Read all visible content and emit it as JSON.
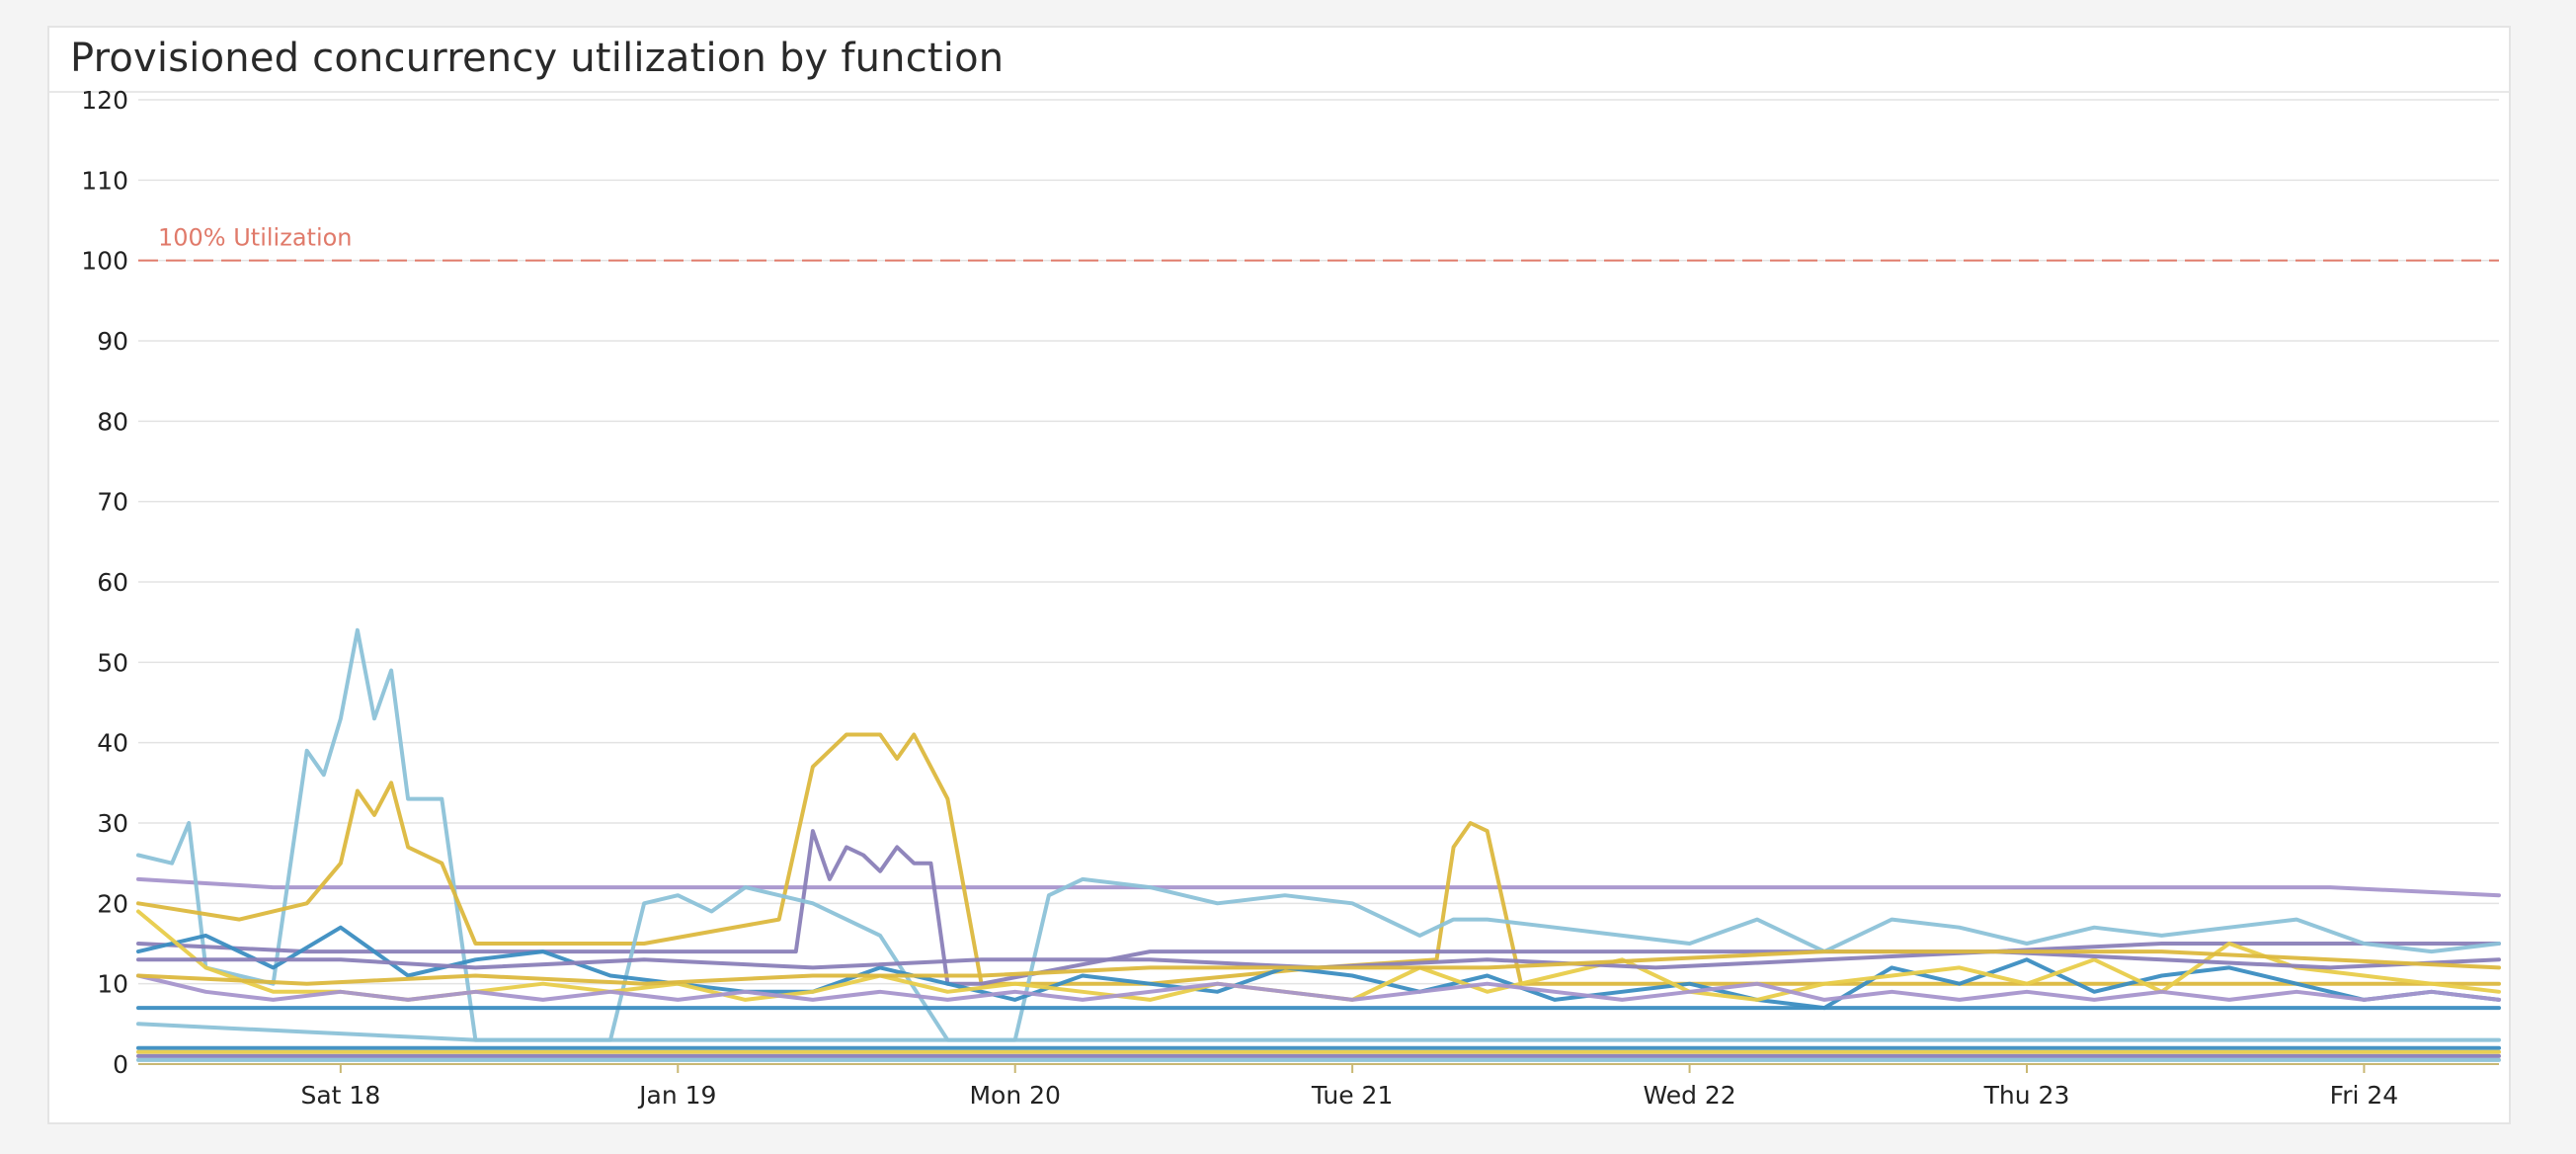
{
  "widget": {
    "title": "Provisioned concurrency utilization by function"
  },
  "chart_data": {
    "type": "line",
    "title": "Provisioned concurrency utilization by function",
    "xlabel": "",
    "ylabel": "",
    "ylim": [
      0,
      120
    ],
    "yticks": [
      0,
      10,
      20,
      30,
      40,
      50,
      60,
      70,
      80,
      90,
      100,
      110,
      120
    ],
    "xlim": [
      0,
      7
    ],
    "xticks": [
      {
        "x": 0.6,
        "label": "Sat 18"
      },
      {
        "x": 1.6,
        "label": "Jan 19"
      },
      {
        "x": 2.6,
        "label": "Mon 20"
      },
      {
        "x": 3.6,
        "label": "Tue 21"
      },
      {
        "x": 4.6,
        "label": "Wed 22"
      },
      {
        "x": 5.6,
        "label": "Thu 23"
      },
      {
        "x": 6.6,
        "label": "Fri 24"
      }
    ],
    "grid": true,
    "legend": "none",
    "marker": {
      "value": 100,
      "label": "100% Utilization",
      "color": "#e07a6a"
    },
    "colors": {
      "purple": "#8a7fb8",
      "lightpurple": "#a795cc",
      "lightblue": "#8cc2d8",
      "blue": "#3b8dc1",
      "yellow": "#e8cc4a",
      "gold": "#dcb83e",
      "grid": "#e3e3e3",
      "axis": "#c9b873",
      "text": "#222222"
    },
    "series": [
      {
        "color": "lightpurple",
        "x": [
          0,
          0.2,
          0.4,
          0.6,
          0.8,
          1,
          1.5,
          2,
          2.5,
          3,
          3.5,
          4,
          4.5,
          5,
          5.5,
          6,
          6.5,
          7
        ],
        "values": [
          23,
          22.5,
          22,
          22,
          22,
          22,
          22,
          22,
          22,
          22,
          22,
          22,
          22,
          22,
          22,
          22,
          22,
          21
        ]
      },
      {
        "color": "lightblue",
        "x": [
          0,
          0.1,
          0.15,
          0.2,
          0.4,
          0.5,
          0.55,
          0.6,
          0.65,
          0.7,
          0.75,
          0.8,
          0.9,
          1,
          1.5,
          2,
          2.5,
          3,
          3.5,
          4,
          4.5,
          5,
          5.5,
          6,
          6.5,
          7
        ],
        "values": [
          26,
          25,
          30,
          12,
          10,
          39,
          36,
          43,
          54,
          43,
          49,
          33,
          33,
          3,
          3,
          3,
          3,
          3,
          3,
          3,
          3,
          3,
          3,
          3,
          3,
          3
        ]
      },
      {
        "color": "gold",
        "x": [
          0,
          0.3,
          0.5,
          0.6,
          0.65,
          0.7,
          0.75,
          0.8,
          0.9,
          1,
          1.5,
          1.9,
          2,
          2.1,
          2.2,
          2.25,
          2.3,
          2.4,
          2.5,
          2.6,
          3,
          3.5,
          3.85,
          3.9,
          3.95,
          4,
          4.1,
          4.5,
          5,
          5.5,
          6,
          6.5,
          7
        ],
        "values": [
          20,
          18,
          20,
          25,
          34,
          31,
          35,
          27,
          25,
          15,
          15,
          18,
          37,
          41,
          41,
          38,
          41,
          33,
          10,
          10,
          10,
          12,
          13,
          27,
          30,
          29,
          10,
          10,
          10,
          10,
          10,
          10,
          10
        ]
      },
      {
        "color": "purple",
        "x": [
          0,
          0.5,
          1,
          1.5,
          1.95,
          2,
          2.05,
          2.1,
          2.15,
          2.2,
          2.25,
          2.3,
          2.35,
          2.4,
          2.5,
          3,
          3.5,
          4,
          4.5,
          5,
          5.5,
          6,
          6.5,
          7
        ],
        "values": [
          15,
          14,
          14,
          14,
          14,
          29,
          23,
          27,
          26,
          24,
          27,
          25,
          25,
          10,
          10,
          14,
          14,
          14,
          14,
          14,
          14,
          15,
          15,
          15
        ]
      },
      {
        "color": "lightblue",
        "x": [
          0,
          0.5,
          1,
          1.4,
          1.5,
          1.6,
          1.7,
          1.8,
          2,
          2.2,
          2.4,
          2.6,
          2.7,
          2.8,
          3,
          3.2,
          3.4,
          3.6,
          3.8,
          3.9,
          4,
          4.2,
          4.4,
          4.6,
          4.8,
          5,
          5.2,
          5.4,
          5.6,
          5.8,
          6,
          6.2,
          6.4,
          6.6,
          6.8,
          7
        ],
        "values": [
          5,
          4,
          3,
          3,
          20,
          21,
          19,
          22,
          20,
          16,
          3,
          3,
          21,
          23,
          22,
          20,
          21,
          20,
          16,
          18,
          18,
          17,
          16,
          15,
          18,
          14,
          18,
          17,
          15,
          17,
          16,
          17,
          18,
          15,
          14,
          15
        ]
      },
      {
        "color": "blue",
        "x": [
          0,
          0.2,
          0.4,
          0.6,
          0.8,
          1,
          1.2,
          1.4,
          1.6,
          1.8,
          2,
          2.2,
          2.4,
          2.6,
          2.8,
          3,
          3.2,
          3.4,
          3.6,
          3.8,
          4,
          4.2,
          4.4,
          4.6,
          4.8,
          5,
          5.2,
          5.4,
          5.6,
          5.8,
          6,
          6.2,
          6.4,
          6.6,
          6.8,
          7
        ],
        "values": [
          14,
          16,
          12,
          17,
          11,
          13,
          14,
          11,
          10,
          9,
          9,
          12,
          10,
          8,
          11,
          10,
          9,
          12,
          11,
          9,
          11,
          8,
          9,
          10,
          8,
          7,
          12,
          10,
          13,
          9,
          11,
          12,
          10,
          8,
          9,
          8
        ]
      },
      {
        "color": "yellow",
        "x": [
          0,
          0.2,
          0.4,
          0.6,
          0.8,
          1,
          1.2,
          1.4,
          1.6,
          1.8,
          2,
          2.2,
          2.4,
          2.6,
          2.8,
          3,
          3.2,
          3.4,
          3.6,
          3.8,
          4,
          4.2,
          4.4,
          4.6,
          4.8,
          5,
          5.2,
          5.4,
          5.6,
          5.8,
          6,
          6.2,
          6.4,
          6.6,
          6.8,
          7
        ],
        "values": [
          19,
          12,
          9,
          9,
          8,
          9,
          10,
          9,
          10,
          8,
          9,
          11,
          9,
          10,
          9,
          8,
          10,
          9,
          8,
          12,
          9,
          11,
          13,
          9,
          8,
          10,
          11,
          12,
          10,
          13,
          9,
          15,
          12,
          11,
          10,
          9
        ]
      },
      {
        "color": "lightpurple",
        "x": [
          0,
          0.2,
          0.4,
          0.6,
          0.8,
          1,
          1.2,
          1.4,
          1.6,
          1.8,
          2,
          2.2,
          2.4,
          2.6,
          2.8,
          3,
          3.2,
          3.4,
          3.6,
          3.8,
          4,
          4.2,
          4.4,
          4.6,
          4.8,
          5,
          5.2,
          5.4,
          5.6,
          5.8,
          6,
          6.2,
          6.4,
          6.6,
          6.8,
          7
        ],
        "values": [
          11,
          9,
          8,
          9,
          8,
          9,
          8,
          9,
          8,
          9,
          8,
          9,
          8,
          9,
          8,
          9,
          10,
          9,
          8,
          9,
          10,
          9,
          8,
          9,
          10,
          8,
          9,
          8,
          9,
          8,
          9,
          8,
          9,
          8,
          9,
          8
        ]
      },
      {
        "color": "purple",
        "x": [
          0,
          0.3,
          0.6,
          1,
          1.5,
          2,
          2.5,
          3,
          3.5,
          4,
          4.5,
          5,
          5.5,
          6,
          6.5,
          7
        ],
        "values": [
          13,
          13,
          13,
          12,
          13,
          12,
          13,
          13,
          12,
          13,
          12,
          13,
          14,
          13,
          12,
          13
        ]
      },
      {
        "color": "gold",
        "x": [
          0,
          0.5,
          1,
          1.5,
          2,
          2.5,
          3,
          3.5,
          4,
          4.5,
          5,
          5.5,
          6,
          6.5,
          7
        ],
        "values": [
          11,
          10,
          11,
          10,
          11,
          11,
          12,
          12,
          12,
          13,
          14,
          14,
          14,
          13,
          12
        ]
      },
      {
        "color": "blue",
        "x": [
          0,
          1,
          2,
          3,
          4,
          5,
          6,
          7
        ],
        "values": [
          7,
          7,
          7,
          7,
          7,
          7,
          7,
          7
        ]
      },
      {
        "color": "blue",
        "x": [
          0,
          1,
          2,
          3,
          4,
          5,
          6,
          7
        ],
        "values": [
          2,
          2,
          2,
          2,
          2,
          2,
          2,
          2
        ]
      },
      {
        "color": "yellow",
        "x": [
          0,
          1,
          2,
          3,
          4,
          5,
          6,
          7
        ],
        "values": [
          1.5,
          1.5,
          1.5,
          1.5,
          1.5,
          1.5,
          1.5,
          1.5
        ]
      },
      {
        "color": "purple",
        "x": [
          0,
          1,
          2,
          3,
          4,
          5,
          6,
          7
        ],
        "values": [
          1,
          1,
          1,
          1,
          1,
          1,
          1,
          1
        ]
      },
      {
        "color": "lightblue",
        "x": [
          0,
          1,
          2,
          3,
          4,
          5,
          6,
          7
        ],
        "values": [
          0.5,
          0.5,
          0.5,
          0.5,
          0.5,
          0.5,
          0.5,
          0.5
        ]
      }
    ]
  }
}
